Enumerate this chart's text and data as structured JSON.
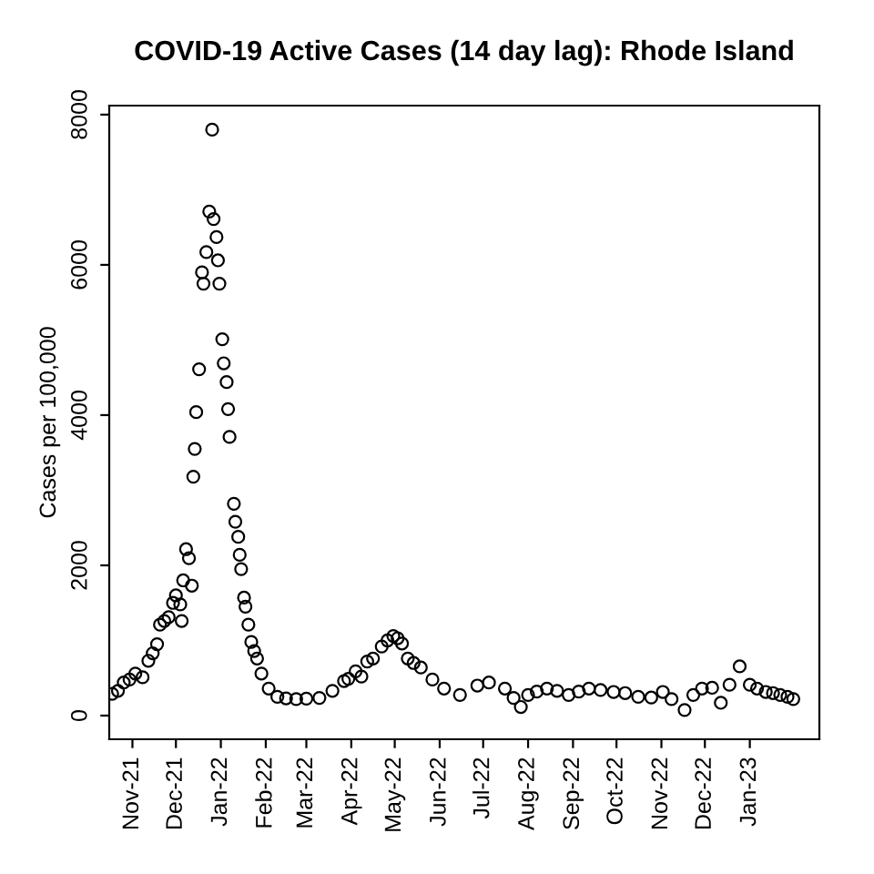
{
  "chart_data": {
    "type": "scatter",
    "title": "COVID-19 Active Cases (14 day lag): Rhode Island",
    "ylabel": "Cases per 100,000",
    "x": [
      "2021-10-18",
      "2021-10-22",
      "2021-10-26",
      "2021-10-30",
      "2021-11-03",
      "2021-11-08",
      "2021-11-12",
      "2021-11-15",
      "2021-11-18",
      "2021-11-20",
      "2021-11-23",
      "2021-11-26",
      "2021-11-29",
      "2021-12-01",
      "2021-12-04",
      "2021-12-05",
      "2021-12-06",
      "2021-12-08",
      "2021-12-10",
      "2021-12-12",
      "2021-12-13",
      "2021-12-14",
      "2021-12-15",
      "2021-12-17",
      "2021-12-19",
      "2021-12-20",
      "2021-12-22",
      "2021-12-24",
      "2021-12-26",
      "2021-12-27",
      "2021-12-29",
      "2021-12-30",
      "2021-12-31",
      "2022-01-02",
      "2022-01-03",
      "2022-01-05",
      "2022-01-06",
      "2022-01-07",
      "2022-01-10",
      "2022-01-11",
      "2022-01-13",
      "2022-01-14",
      "2022-01-15",
      "2022-01-17",
      "2022-01-18",
      "2022-01-20",
      "2022-01-22",
      "2022-01-24",
      "2022-01-26",
      "2022-01-29",
      "2022-02-03",
      "2022-02-09",
      "2022-02-15",
      "2022-02-22",
      "2022-03-01",
      "2022-03-10",
      "2022-03-19",
      "2022-03-27",
      "2022-03-30",
      "2022-04-04",
      "2022-04-08",
      "2022-04-12",
      "2022-04-16",
      "2022-04-22",
      "2022-04-26",
      "2022-04-30",
      "2022-05-03",
      "2022-05-06",
      "2022-05-10",
      "2022-05-14",
      "2022-05-19",
      "2022-05-27",
      "2022-06-04",
      "2022-06-15",
      "2022-06-27",
      "2022-07-05",
      "2022-07-16",
      "2022-07-22",
      "2022-07-27",
      "2022-08-01",
      "2022-08-07",
      "2022-08-14",
      "2022-08-21",
      "2022-08-29",
      "2022-09-05",
      "2022-09-12",
      "2022-09-20",
      "2022-09-29",
      "2022-10-07",
      "2022-10-16",
      "2022-10-25",
      "2022-11-02",
      "2022-11-08",
      "2022-11-17",
      "2022-11-23",
      "2022-11-29",
      "2022-12-06",
      "2022-12-12",
      "2022-12-18",
      "2022-12-25",
      "2023-01-01",
      "2023-01-06",
      "2023-01-12",
      "2023-01-17",
      "2023-01-22",
      "2023-01-27",
      "2023-01-31"
    ],
    "values": [
      290,
      330,
      440,
      480,
      560,
      510,
      730,
      830,
      950,
      1210,
      1260,
      1310,
      1500,
      1600,
      1480,
      1260,
      1800,
      2215,
      2095,
      1730,
      3180,
      3550,
      4040,
      4610,
      5900,
      5750,
      6170,
      6710,
      7800,
      6610,
      6370,
      6060,
      5750,
      5010,
      4690,
      4440,
      4080,
      3710,
      2820,
      2580,
      2380,
      2140,
      1950,
      1570,
      1450,
      1210,
      980,
      860,
      760,
      560,
      360,
      250,
      230,
      220,
      225,
      235,
      330,
      460,
      490,
      590,
      520,
      720,
      760,
      920,
      1000,
      1060,
      1030,
      960,
      760,
      700,
      640,
      480,
      360,
      275,
      400,
      440,
      360,
      235,
      115,
      275,
      320,
      360,
      330,
      275,
      320,
      360,
      340,
      315,
      300,
      250,
      240,
      315,
      220,
      75,
      275,
      360,
      370,
      170,
      410,
      655,
      410,
      360,
      315,
      300,
      275,
      250,
      220
    ],
    "color": "#000000",
    "marker": "circle",
    "xlim": [
      "2021-10-16",
      "2023-02-18"
    ],
    "xticks": [
      {
        "value": "2021-11-01",
        "label": "Nov-21"
      },
      {
        "value": "2021-12-01",
        "label": "Dec-21"
      },
      {
        "value": "2022-01-01",
        "label": "Jan-22"
      },
      {
        "value": "2022-02-01",
        "label": "Feb-22"
      },
      {
        "value": "2022-03-01",
        "label": "Mar-22"
      },
      {
        "value": "2022-04-01",
        "label": "Apr-22"
      },
      {
        "value": "2022-05-01",
        "label": "May-22"
      },
      {
        "value": "2022-06-01",
        "label": "Jun-22"
      },
      {
        "value": "2022-07-01",
        "label": "Jul-22"
      },
      {
        "value": "2022-08-01",
        "label": "Aug-22"
      },
      {
        "value": "2022-09-01",
        "label": "Sep-22"
      },
      {
        "value": "2022-10-01",
        "label": "Oct-22"
      },
      {
        "value": "2022-11-01",
        "label": "Nov-22"
      },
      {
        "value": "2022-12-01",
        "label": "Dec-22"
      },
      {
        "value": "2023-01-01",
        "label": "Jan-23"
      }
    ],
    "ylim": [
      -315,
      8120
    ],
    "yticks": [
      0,
      2000,
      4000,
      6000,
      8000
    ],
    "grid": false,
    "legend": false
  }
}
